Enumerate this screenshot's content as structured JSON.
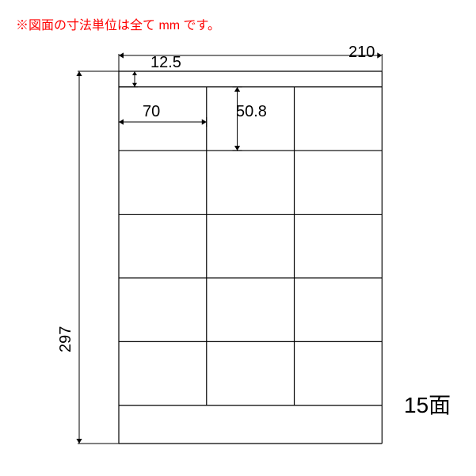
{
  "note_text": "※図面の寸法単位は全て mm です。",
  "dimensions": {
    "page_width": "210",
    "page_height": "297",
    "top_margin": "12.5",
    "cell_width": "70",
    "cell_height": "50.8"
  },
  "face_count_label": "15面",
  "layout": {
    "cols": 3,
    "rows": 5,
    "page_w_mm": 210,
    "page_h_mm": 297,
    "top_margin_mm": 12.5,
    "cell_w_mm": 70,
    "cell_h_mm": 50.8
  },
  "colors": {
    "note": "#ff0000",
    "line": "#000000",
    "text": "#000000",
    "bg": "#ffffff"
  },
  "stroke_width": 1.2,
  "note_fontsize": 16,
  "dim_fontsize": 20,
  "face_fontsize": 28
}
